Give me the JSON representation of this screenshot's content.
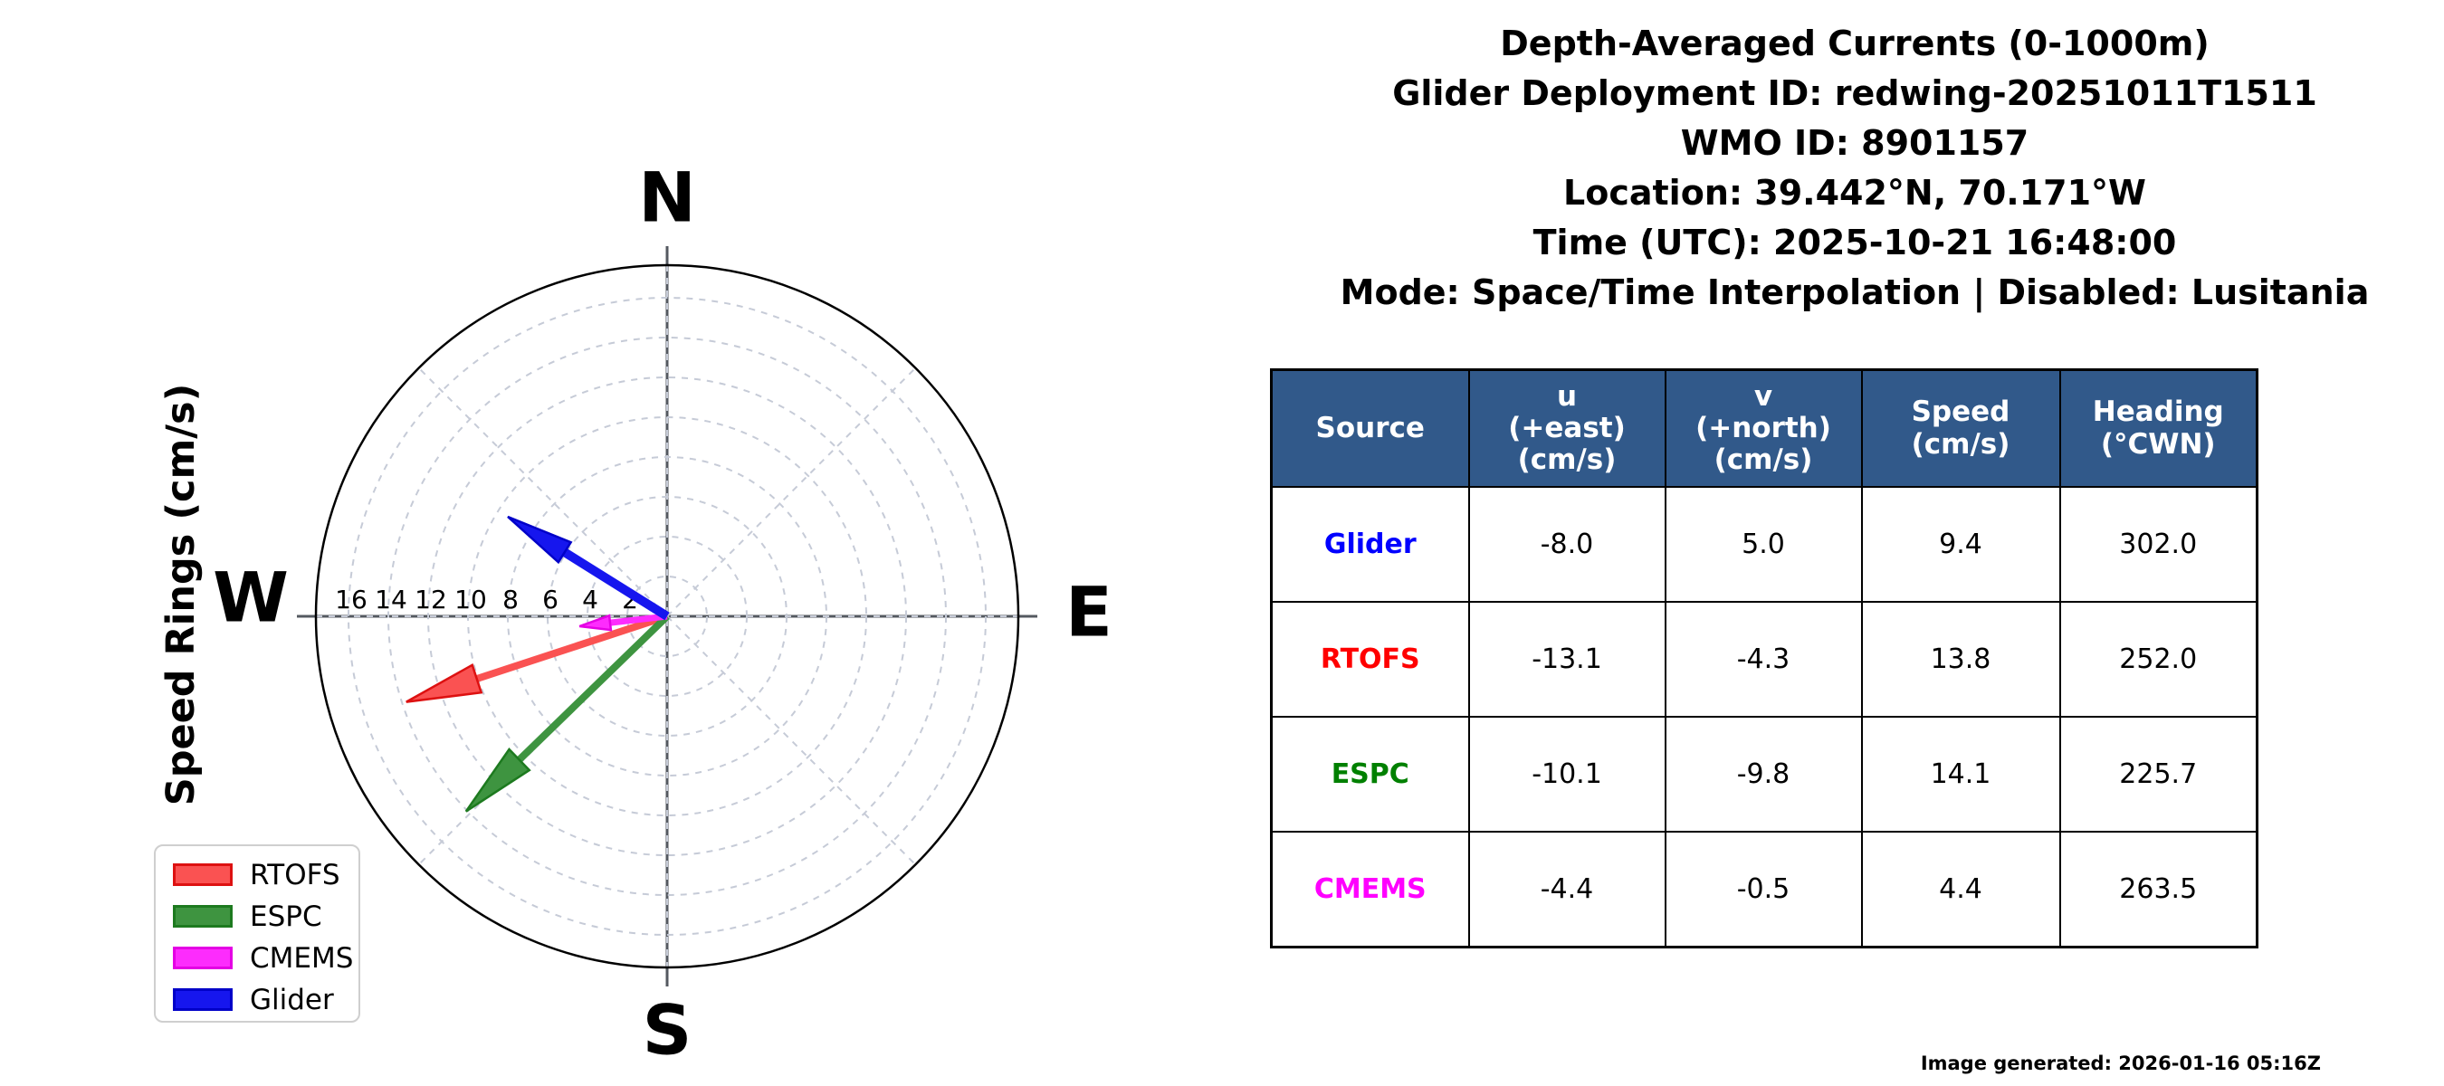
{
  "figure": {
    "title_lines": [
      "Depth-Averaged Currents (0-1000m)",
      "Glider Deployment ID: redwing-20251011T1511",
      "WMO ID: 8901157",
      "Location: 39.442°N, 70.171°W",
      "Time (UTC): 2025-10-21 16:48:00",
      "Mode: Space/Time Interpolation | Disabled: Lusitania"
    ],
    "footer": "Image generated: 2026-01-16 05:16Z"
  },
  "chart_data": {
    "type": "scatter",
    "subtype": "polar-current-vector-quiver",
    "axis_label": "Speed Rings (cm/s)",
    "compass": {
      "north": "N",
      "east": "E",
      "south": "S",
      "west": "W"
    },
    "ring_values": [
      2,
      4,
      6,
      8,
      10,
      12,
      14,
      16
    ],
    "ring_unit": "cm/s",
    "max_radius": 17.6,
    "grid": true,
    "legend_position": "lower left",
    "series": [
      {
        "name": "RTOFS",
        "u": -13.1,
        "v": -4.3,
        "speed": 13.8,
        "heading_cwn": 252.0,
        "color": "#fa5252",
        "edge": "#dd1111",
        "line_width": 8,
        "head_len": 82,
        "head_w": 32
      },
      {
        "name": "ESPC",
        "u": -10.1,
        "v": -9.8,
        "speed": 14.1,
        "heading_cwn": 225.7,
        "color": "#3e9440",
        "edge": "#1d7a1f",
        "line_width": 8,
        "head_len": 82,
        "head_w": 32
      },
      {
        "name": "CMEMS",
        "u": -4.4,
        "v": -0.5,
        "speed": 4.4,
        "heading_cwn": 263.5,
        "color": "#fd2cfd",
        "edge": "#e400e4",
        "line_width": 7,
        "head_len": 34,
        "head_w": 16
      },
      {
        "name": "Glider",
        "u": -8.0,
        "v": 5.0,
        "speed": 9.4,
        "heading_cwn": 302.0,
        "color": "#1616ee",
        "edge": "#0000c8",
        "line_width": 10,
        "head_len": 74,
        "head_w": 26
      }
    ]
  },
  "table": {
    "header_bg": "#31598a",
    "header_text_color": "#ffffff",
    "headers": [
      "Source",
      "u\n(+east)\n(cm/s)",
      "v\n(+north)\n(cm/s)",
      "Speed\n(cm/s)",
      "Heading\n(°CWN)"
    ],
    "rows": [
      {
        "source": "Glider",
        "color": "#0000ff",
        "values": [
          "-8.0",
          "5.0",
          "9.4",
          "302.0"
        ]
      },
      {
        "source": "RTOFS",
        "color": "#ff0000",
        "values": [
          "-13.1",
          "-4.3",
          "13.8",
          "252.0"
        ]
      },
      {
        "source": "ESPC",
        "color": "#008000",
        "values": [
          "-10.1",
          "-9.8",
          "14.1",
          "225.7"
        ]
      },
      {
        "source": "CMEMS",
        "color": "#ff00ff",
        "values": [
          "-4.4",
          "-0.5",
          "4.4",
          "263.5"
        ]
      }
    ]
  }
}
